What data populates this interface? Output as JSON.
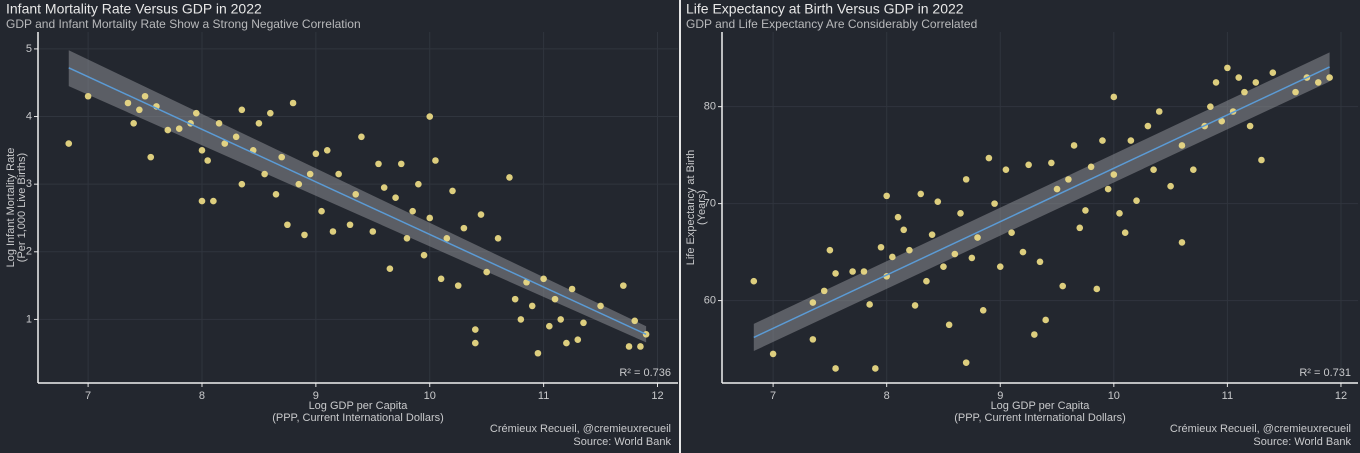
{
  "chart_data": [
    {
      "type": "scatter",
      "title": "Infant Mortality Rate Versus GDP in 2022",
      "subtitle": "GDP and Infant Mortality Rate Show a Strong Negative Correlation",
      "xlabel": [
        "Log GDP per Capita",
        "(PPP, Current International Dollars)"
      ],
      "ylabel": [
        "Log Infant Mortality Rate",
        "(Per 1,000 Live Births)"
      ],
      "caption": [
        "Crémieux Recueil, @cremieuxrecueil",
        "Source: World Bank"
      ],
      "annotation": "R² = 0.736",
      "color": "#eedc86",
      "fit_color": "#5b9bd5",
      "band_color": "#8a8d92",
      "grid": true,
      "xlim": [
        6.56,
        12.18
      ],
      "ylim": [
        0.06,
        5.25
      ],
      "xticks": [
        7,
        8,
        9,
        10,
        11,
        12
      ],
      "yticks": [
        1,
        2,
        3,
        4,
        5
      ],
      "fit": {
        "x": [
          6.83,
          11.9
        ],
        "y": [
          4.72,
          0.78
        ],
        "lower": [
          4.45,
          0.66
        ],
        "upper": [
          4.98,
          0.9
        ]
      },
      "x": [
        6.83,
        7.0,
        7.35,
        7.4,
        7.45,
        7.5,
        7.55,
        7.6,
        7.7,
        7.8,
        7.9,
        7.95,
        8.0,
        8.0,
        8.05,
        8.1,
        8.15,
        8.2,
        8.3,
        8.35,
        8.35,
        8.45,
        8.5,
        8.55,
        8.6,
        8.65,
        8.7,
        8.75,
        8.8,
        8.85,
        8.9,
        8.95,
        9.0,
        9.05,
        9.1,
        9.15,
        9.2,
        9.3,
        9.35,
        9.4,
        9.5,
        9.55,
        9.6,
        9.65,
        9.7,
        9.75,
        9.8,
        9.85,
        9.9,
        9.95,
        10.0,
        10.0,
        10.05,
        10.1,
        10.15,
        10.2,
        10.25,
        10.3,
        10.4,
        10.4,
        10.45,
        10.5,
        10.6,
        10.7,
        10.75,
        10.8,
        10.85,
        10.9,
        10.95,
        11.0,
        11.05,
        11.1,
        11.15,
        11.2,
        11.25,
        11.3,
        11.35,
        11.5,
        11.7,
        11.75,
        11.8,
        11.85,
        11.9
      ],
      "y": [
        3.6,
        4.3,
        4.2,
        3.9,
        4.1,
        4.3,
        3.4,
        4.15,
        3.8,
        3.82,
        3.9,
        4.05,
        3.5,
        2.75,
        3.35,
        2.75,
        3.9,
        3.6,
        3.7,
        3.0,
        4.1,
        3.5,
        3.9,
        3.15,
        4.05,
        2.85,
        3.4,
        2.4,
        4.2,
        3.0,
        2.25,
        3.15,
        3.45,
        2.6,
        3.5,
        2.3,
        3.15,
        2.4,
        2.85,
        3.7,
        2.3,
        3.3,
        2.95,
        1.75,
        2.8,
        3.3,
        2.2,
        2.6,
        3.0,
        1.95,
        2.5,
        4.0,
        3.35,
        1.6,
        2.2,
        2.9,
        1.5,
        2.35,
        0.85,
        0.65,
        2.55,
        1.7,
        2.2,
        3.1,
        1.3,
        1.0,
        1.55,
        1.2,
        0.5,
        1.6,
        0.9,
        1.3,
        1.0,
        0.65,
        1.45,
        0.7,
        0.95,
        1.2,
        1.5,
        0.6,
        0.98,
        0.6,
        0.78
      ]
    },
    {
      "type": "scatter",
      "title": "Life Expectancy at Birth Versus GDP in 2022",
      "subtitle": "GDP and Life Expectancy Are Considerably Correlated",
      "xlabel": [
        "Log GDP per Capita",
        "(PPP, Current International Dollars)"
      ],
      "ylabel": [
        "Life Expectancy at Birth",
        "(Years)"
      ],
      "caption": [
        "Crémieux Recueil, @cremieuxrecueil",
        "Source: World Bank"
      ],
      "annotation": "R² = 0.731",
      "color": "#eedc86",
      "fit_color": "#5b9bd5",
      "band_color": "#8a8d92",
      "grid": true,
      "xlim": [
        6.55,
        12.15
      ],
      "ylim": [
        51.5,
        87.7
      ],
      "xticks": [
        7,
        8,
        9,
        10,
        11,
        12
      ],
      "yticks": [
        60,
        70,
        80
      ],
      "fit": {
        "x": [
          6.83,
          11.9
        ],
        "y": [
          56.2,
          84.1
        ],
        "lower": [
          54.8,
          82.6
        ],
        "upper": [
          57.6,
          85.6
        ]
      },
      "x": [
        6.83,
        7.0,
        7.35,
        7.35,
        7.45,
        7.5,
        7.55,
        7.55,
        7.7,
        7.8,
        7.85,
        7.9,
        7.95,
        8.0,
        8.0,
        8.05,
        8.1,
        8.15,
        8.2,
        8.25,
        8.3,
        8.35,
        8.4,
        8.45,
        8.5,
        8.55,
        8.6,
        8.65,
        8.7,
        8.7,
        8.75,
        8.8,
        8.85,
        8.9,
        8.95,
        9.0,
        9.05,
        9.1,
        9.2,
        9.25,
        9.3,
        9.35,
        9.4,
        9.45,
        9.5,
        9.55,
        9.6,
        9.65,
        9.7,
        9.75,
        9.8,
        9.85,
        9.9,
        9.95,
        10.0,
        10.0,
        10.05,
        10.1,
        10.15,
        10.2,
        10.3,
        10.35,
        10.4,
        10.5,
        10.6,
        10.6,
        10.7,
        10.8,
        10.85,
        10.9,
        10.95,
        11.0,
        11.05,
        11.1,
        11.15,
        11.2,
        11.25,
        11.3,
        11.4,
        11.6,
        11.7,
        11.8,
        11.9
      ],
      "y": [
        62,
        54.5,
        56,
        59.8,
        61,
        65.2,
        53,
        62.8,
        63,
        63,
        59.6,
        53,
        65.5,
        70.8,
        62.5,
        64.5,
        68.6,
        67.3,
        65.2,
        59.5,
        71,
        62,
        66.8,
        70.2,
        63.5,
        57.5,
        64.8,
        69,
        53.6,
        72.5,
        64.4,
        66.5,
        59,
        74.7,
        70,
        63.5,
        73.5,
        67,
        65,
        74,
        56.5,
        64,
        58,
        74.2,
        71.5,
        61.5,
        72.5,
        76,
        67.5,
        69.3,
        73.8,
        61.2,
        76.5,
        71.5,
        81,
        73,
        69,
        67,
        76.5,
        70.3,
        78,
        73.5,
        79.5,
        71.8,
        66,
        76,
        73.5,
        78,
        80,
        82.5,
        78.5,
        84,
        79.5,
        83,
        81.5,
        78,
        82.5,
        74.5,
        83.5,
        81.5,
        83,
        82.5,
        83
      ]
    }
  ]
}
